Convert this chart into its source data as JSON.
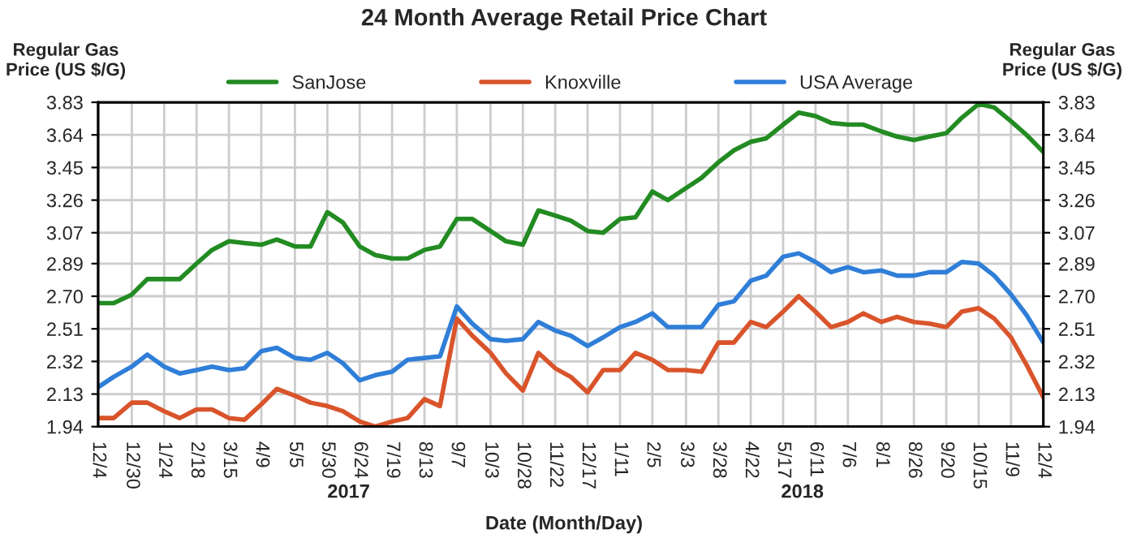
{
  "chart_data": {
    "type": "line",
    "title": "24 Month Average Retail Price Chart",
    "xlabel": "Date (Month/Day)",
    "ylabel": "Regular Gas\nPrice (US $/G)",
    "y2label": "Regular Gas\nPrice (US $/G)",
    "annotations": [
      "2017",
      "2018"
    ],
    "x": [
      "2016-12-04",
      "2016-12-16",
      "2016-12-30",
      "2017-01-11",
      "2017-01-24",
      "2017-02-05",
      "2017-02-18",
      "2017-03-02",
      "2017-03-15",
      "2017-03-27",
      "2017-04-09",
      "2017-04-21",
      "2017-05-05",
      "2017-05-17",
      "2017-05-30",
      "2017-06-11",
      "2017-06-24",
      "2017-07-06",
      "2017-07-19",
      "2017-07-31",
      "2017-08-13",
      "2017-08-25",
      "2017-09-07",
      "2017-09-19",
      "2017-10-03",
      "2017-10-15",
      "2017-10-28",
      "2017-11-09",
      "2017-11-22",
      "2017-12-04",
      "2017-12-17",
      "2017-12-29",
      "2018-01-11",
      "2018-01-23",
      "2018-02-05",
      "2018-02-17",
      "2018-03-03",
      "2018-03-15",
      "2018-03-28",
      "2018-04-09",
      "2018-04-22",
      "2018-05-04",
      "2018-05-17",
      "2018-05-29",
      "2018-06-11",
      "2018-06-23",
      "2018-07-06",
      "2018-07-18",
      "2018-08-01",
      "2018-08-13",
      "2018-08-26",
      "2018-09-07",
      "2018-09-20",
      "2018-10-02",
      "2018-10-15",
      "2018-10-27",
      "2018-11-09",
      "2018-11-21",
      "2018-12-04"
    ],
    "series": [
      {
        "name": "SanJose",
        "color": "#228b22",
        "values": [
          2.66,
          2.66,
          2.71,
          2.8,
          2.8,
          2.8,
          2.89,
          2.97,
          3.02,
          3.01,
          3.0,
          3.03,
          2.99,
          2.99,
          3.19,
          3.13,
          2.99,
          2.94,
          2.92,
          2.92,
          2.97,
          2.99,
          3.15,
          3.15,
          3.08,
          3.02,
          3.0,
          3.2,
          3.17,
          3.14,
          3.08,
          3.07,
          3.15,
          3.16,
          3.31,
          3.26,
          3.33,
          3.39,
          3.48,
          3.55,
          3.6,
          3.62,
          3.7,
          3.77,
          3.75,
          3.71,
          3.7,
          3.7,
          3.66,
          3.63,
          3.61,
          3.63,
          3.65,
          3.74,
          3.82,
          3.8,
          3.72,
          3.64,
          3.54
        ]
      },
      {
        "name": "Knoxville",
        "color": "#d9542b",
        "values": [
          1.99,
          1.99,
          2.08,
          2.08,
          2.03,
          1.99,
          2.04,
          2.04,
          1.99,
          1.98,
          2.07,
          2.16,
          2.12,
          2.08,
          2.06,
          2.03,
          1.97,
          1.94,
          1.97,
          1.99,
          2.1,
          2.06,
          2.57,
          2.47,
          2.37,
          2.25,
          2.15,
          2.37,
          2.28,
          2.23,
          2.14,
          2.27,
          2.27,
          2.37,
          2.33,
          2.27,
          2.27,
          2.26,
          2.43,
          2.43,
          2.55,
          2.52,
          2.61,
          2.7,
          2.61,
          2.52,
          2.55,
          2.6,
          2.55,
          2.58,
          2.55,
          2.54,
          2.52,
          2.61,
          2.63,
          2.57,
          2.46,
          2.3,
          2.11
        ]
      },
      {
        "name": "USA Average",
        "color": "#2f7ed8",
        "values": [
          2.17,
          2.23,
          2.29,
          2.36,
          2.29,
          2.25,
          2.27,
          2.29,
          2.27,
          2.28,
          2.38,
          2.4,
          2.34,
          2.33,
          2.37,
          2.31,
          2.21,
          2.24,
          2.26,
          2.33,
          2.34,
          2.35,
          2.64,
          2.54,
          2.45,
          2.44,
          2.45,
          2.55,
          2.5,
          2.47,
          2.41,
          2.46,
          2.52,
          2.55,
          2.6,
          2.52,
          2.52,
          2.52,
          2.65,
          2.67,
          2.79,
          2.82,
          2.93,
          2.95,
          2.9,
          2.84,
          2.87,
          2.84,
          2.85,
          2.82,
          2.82,
          2.84,
          2.84,
          2.9,
          2.89,
          2.82,
          2.71,
          2.59,
          2.43
        ]
      }
    ],
    "xlim": [
      "2016-12-04",
      "2018-12-04"
    ],
    "xticks": [
      {
        "value": "2016-12-04",
        "label": "12/4"
      },
      {
        "value": "2016-12-30",
        "label": "12/30"
      },
      {
        "value": "2017-01-24",
        "label": "1/24"
      },
      {
        "value": "2017-02-18",
        "label": "2/18"
      },
      {
        "value": "2017-03-15",
        "label": "3/15"
      },
      {
        "value": "2017-04-09",
        "label": "4/9"
      },
      {
        "value": "2017-05-05",
        "label": "5/5"
      },
      {
        "value": "2017-05-30",
        "label": "5/30"
      },
      {
        "value": "2017-06-24",
        "label": "6/24"
      },
      {
        "value": "2017-07-19",
        "label": "7/19"
      },
      {
        "value": "2017-08-13",
        "label": "8/13"
      },
      {
        "value": "2017-09-07",
        "label": "9/7"
      },
      {
        "value": "2017-10-03",
        "label": "10/3"
      },
      {
        "value": "2017-10-28",
        "label": "10/28"
      },
      {
        "value": "2017-11-22",
        "label": "11/22"
      },
      {
        "value": "2017-12-17",
        "label": "12/17"
      },
      {
        "value": "2018-01-11",
        "label": "1/11"
      },
      {
        "value": "2018-02-05",
        "label": "2/5"
      },
      {
        "value": "2018-03-03",
        "label": "3/3"
      },
      {
        "value": "2018-03-28",
        "label": "3/28"
      },
      {
        "value": "2018-04-22",
        "label": "4/22"
      },
      {
        "value": "2018-05-17",
        "label": "5/17"
      },
      {
        "value": "2018-06-11",
        "label": "6/11"
      },
      {
        "value": "2018-07-06",
        "label": "7/6"
      },
      {
        "value": "2018-08-01",
        "label": "8/1"
      },
      {
        "value": "2018-08-26",
        "label": "8/26"
      },
      {
        "value": "2018-09-20",
        "label": "9/20"
      },
      {
        "value": "2018-10-15",
        "label": "10/15"
      },
      {
        "value": "2018-11-09",
        "label": "11/9"
      },
      {
        "value": "2018-12-04",
        "label": "12/4"
      }
    ],
    "ylim": [
      1.94,
      3.83
    ],
    "yticks": [
      1.94,
      2.13,
      2.32,
      2.51,
      {
        "value": 2.7,
        "label": "2.70"
      },
      2.89,
      3.07,
      3.26,
      3.45,
      3.64,
      3.83
    ],
    "y2lim": [
      1.94,
      3.83
    ],
    "y2ticks": [
      1.94,
      2.13,
      2.32,
      2.51,
      {
        "value": 2.7,
        "label": "2.70"
      },
      2.89,
      3.07,
      3.26,
      3.45,
      3.64,
      3.83
    ],
    "grid": true,
    "legend": "top",
    "marker": "none",
    "line_style": "solid"
  }
}
